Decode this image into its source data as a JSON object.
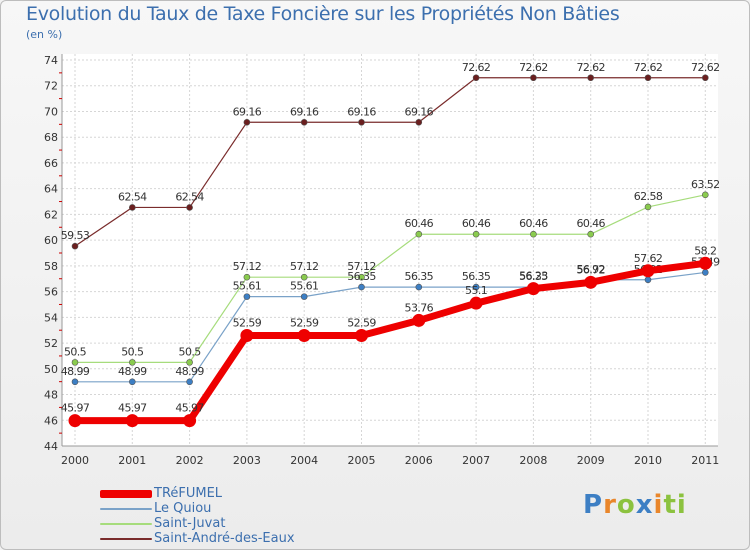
{
  "header": {
    "title": "Evolution du Taux de Taxe Foncière sur les Propriétés Non Bâties",
    "subtitle": "(en %)"
  },
  "logo": {
    "text": "Proxiti",
    "letters": [
      "P",
      "r",
      "o",
      "x",
      "i",
      "ti"
    ]
  },
  "chart_data": {
    "type": "line",
    "title": "Evolution du Taux de Taxe Foncière sur les Propriétés Non Bâties",
    "ylabel": "(en %)",
    "xlabel": "",
    "ylim": [
      44,
      74
    ],
    "yticks": [
      44,
      46,
      48,
      50,
      52,
      54,
      56,
      58,
      60,
      62,
      64,
      66,
      68,
      70,
      72,
      74
    ],
    "grid": true,
    "categories": [
      "2000",
      "2001",
      "2002",
      "2003",
      "2004",
      "2005",
      "2006",
      "2007",
      "2008",
      "2009",
      "2010",
      "2011"
    ],
    "series": [
      {
        "name": "Saint-André-des-Eaux",
        "color": "#7a2c2c",
        "marker": "#6b1f1f",
        "width": 1.2,
        "values": [
          59.53,
          62.54,
          62.54,
          69.16,
          69.16,
          69.16,
          69.16,
          72.62,
          72.62,
          72.62,
          72.62,
          72.62
        ],
        "labels": [
          "59.53",
          "62.54",
          "62.54",
          "69.16",
          "69.16",
          "69.16",
          "69.16",
          "72.62",
          "72.62",
          "72.62",
          "72.62",
          "72.62"
        ]
      },
      {
        "name": "Saint-Juvat",
        "color": "#a6dc7c",
        "marker": "#8acb4e",
        "width": 1.2,
        "values": [
          50.5,
          50.5,
          50.5,
          57.12,
          57.12,
          57.12,
          60.46,
          60.46,
          60.46,
          60.46,
          62.58,
          63.52
        ],
        "labels": [
          "50.5",
          "50.5",
          "50.5",
          "57.12",
          "57.12",
          "57.12",
          "60.46",
          "60.46",
          "60.46",
          "60.46",
          "62.58",
          "63.52"
        ]
      },
      {
        "name": "Le Quiou",
        "color": "#7aa2c8",
        "marker": "#3d7fc4",
        "width": 1.2,
        "values": [
          48.99,
          48.99,
          48.99,
          55.61,
          55.61,
          56.35,
          56.35,
          56.35,
          56.35,
          56.92,
          56.92,
          57.49
        ],
        "labels": [
          "48.99",
          "48.99",
          "48.99",
          "55.61",
          "55.61",
          "56.35",
          "56.35",
          "56.35",
          "56.35",
          "56.92",
          "56.92",
          "57.49"
        ]
      },
      {
        "name": "TRéFUMEL",
        "color": "#ee0000",
        "marker": "#ee0000",
        "width": 7,
        "values": [
          45.97,
          45.97,
          45.97,
          52.59,
          52.59,
          52.59,
          53.76,
          55.1,
          56.23,
          56.72,
          57.62,
          58.2
        ],
        "labels": [
          "45.97",
          "45.97",
          "45.97",
          "52.59",
          "52.59",
          "52.59",
          "53.76",
          "55.1",
          "56.23",
          "56.72",
          "57.62",
          "58.2"
        ]
      }
    ],
    "legend": {
      "position": "bottom-left",
      "entries": [
        "TRéFUMEL",
        "Le Quiou",
        "Saint-Juvat",
        "Saint-André-des-Eaux"
      ]
    }
  }
}
